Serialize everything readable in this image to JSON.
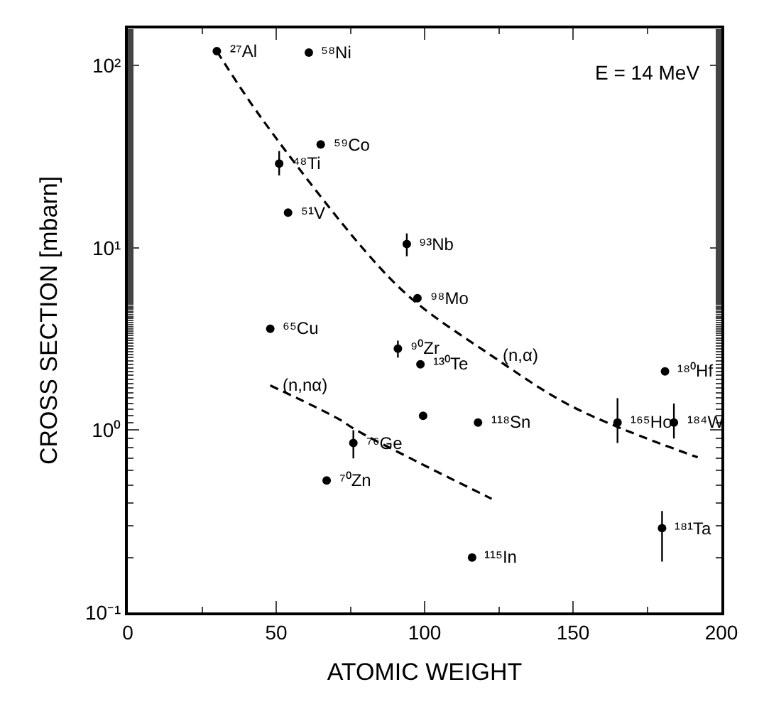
{
  "chart_data": {
    "type": "scatter",
    "xlabel": "ATOMIC WEIGHT",
    "ylabel": "CROSS SECTION [mbarn]",
    "xlim": [
      0,
      200
    ],
    "xticks": [
      0,
      50,
      100,
      150,
      200
    ],
    "ylim": [
      0.1,
      160
    ],
    "yticks": [
      {
        "value": 0.1,
        "label": "10⁻¹"
      },
      {
        "value": 1,
        "label": "10⁰"
      },
      {
        "value": 10,
        "label": "10¹"
      },
      {
        "value": 100,
        "label": "10²"
      }
    ],
    "log": "y",
    "series": [
      {
        "color": "#000000",
        "marker": "circle",
        "x": [
          30,
          61,
          65,
          51,
          54,
          94,
          97.6,
          91,
          98.6,
          99.5,
          118,
          165,
          181,
          184,
          180,
          116,
          67,
          76,
          48
        ],
        "values": [
          120,
          118,
          37,
          29,
          15.6,
          10.5,
          5.3,
          2.8,
          2.3,
          1.2,
          1.1,
          1.1,
          2.1,
          1.1,
          0.29,
          0.2,
          0.53,
          0.85,
          3.6
        ],
        "errors": [
          null,
          null,
          null,
          [
            25,
            34
          ],
          null,
          [
            9,
            12
          ],
          null,
          [
            2.5,
            3.1
          ],
          null,
          null,
          null,
          [
            0.85,
            1.5
          ],
          null,
          [
            0.9,
            1.4
          ],
          [
            0.19,
            0.36
          ],
          null,
          null,
          [
            0.7,
            1.0
          ],
          null
        ]
      },
      {
        "type": "line",
        "color": "#000000",
        "line_style": "dashed",
        "marker": "none",
        "x": [
          30,
          45,
          80,
          96,
          122,
          150,
          192
        ],
        "values": [
          120,
          51.6,
          9.6,
          5.2,
          2.6,
          1.34,
          0.71
        ]
      },
      {
        "type": "line",
        "color": "#000000",
        "line_style": "dashed",
        "marker": "none",
        "x": [
          48,
          70.7,
          77,
          97.6,
          122.6
        ],
        "values": [
          1.76,
          1.16,
          1.0,
          0.67,
          0.42
        ]
      }
    ],
    "annotations": [
      "E = 14 MeV",
      {
        "text": "²⁷Al",
        "x": 30,
        "y": 120
      },
      {
        "text": "⁵⁸Ni",
        "x": 61,
        "y": 118
      },
      {
        "text": "⁵⁹Co",
        "x": 65,
        "y": 37
      },
      {
        "text": "⁴⁸Ti",
        "x": 51,
        "y": 29
      },
      {
        "text": "⁵¹V",
        "x": 54,
        "y": 15.6
      },
      {
        "text": "⁹³Nb",
        "x": 94,
        "y": 10.5
      },
      {
        "text": "⁹⁸Mo",
        "x": 97.6,
        "y": 5.3
      },
      {
        "text": "⁹⁰Zr",
        "x": 91,
        "y": 2.8
      },
      {
        "text": "⁶⁵Cu",
        "x": 48,
        "y": 3.6
      },
      {
        "text": "¹³⁰Te",
        "x": 98.6,
        "y": 2.3
      },
      {
        "text": "(n,α)",
        "x": 122,
        "y": 2.6
      },
      {
        "text": "(n,nα)",
        "x": 48,
        "y": 1.76
      },
      {
        "text": "⁷⁶Ge",
        "x": 76,
        "y": 0.85
      },
      {
        "text": "⁷⁰Zn",
        "x": 67,
        "y": 0.53
      },
      {
        "text": "¹¹⁸Sn",
        "x": 118,
        "y": 1.1
      },
      {
        "text": "¹¹⁵In",
        "x": 116,
        "y": 0.2
      },
      {
        "text": "¹⁸¹Ta",
        "x": 180,
        "y": 0.29
      },
      {
        "text": "¹⁶⁵Ho",
        "x": 165,
        "y": 1.1
      },
      {
        "text": "¹⁸⁰Hf",
        "x": 181,
        "y": 2.1
      },
      {
        "text": "¹⁸⁴W",
        "x": 184,
        "y": 1.1
      }
    ]
  }
}
